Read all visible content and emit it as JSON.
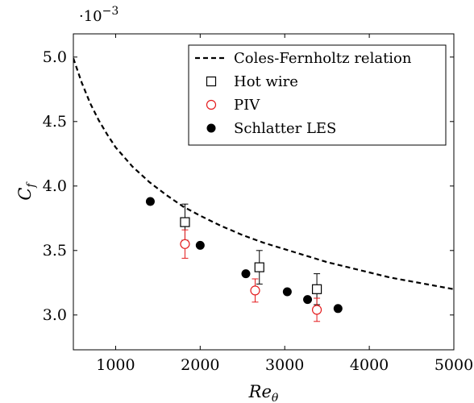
{
  "chart_data": {
    "type": "scatter",
    "title": "",
    "xlabel": "Re",
    "xlabel_sub": "θ",
    "ylabel": "C",
    "ylabel_sub": "f",
    "y_scale_note": {
      "base": "·10",
      "exponent": "−3"
    },
    "xlim": [
      500,
      5000
    ],
    "ylim": [
      2.73,
      5.18
    ],
    "x_ticks": [
      1000,
      2000,
      3000,
      4000,
      5000
    ],
    "x_tick_labels": [
      "1000",
      "2000",
      "3000",
      "4000",
      "5000"
    ],
    "y_ticks": [
      3.0,
      3.5,
      4.0,
      4.5,
      5.0
    ],
    "y_tick_labels": [
      "3.0",
      "3.5",
      "4.0",
      "4.5",
      "5.0"
    ],
    "grid": false,
    "legend_position": "top-right",
    "series": [
      {
        "name": "Coles-Fernholtz relation",
        "kind": "line",
        "style": "dashed",
        "color": "#000000",
        "x": [
          500,
          600,
          700,
          800,
          900,
          1000,
          1200,
          1400,
          1600,
          1800,
          2000,
          2250,
          2500,
          2750,
          3000,
          3250,
          3500,
          3750,
          4000,
          4250,
          4500,
          4750,
          5000
        ],
        "y": [
          4.99,
          4.8,
          4.64,
          4.51,
          4.4,
          4.3,
          4.15,
          4.03,
          3.93,
          3.84,
          3.77,
          3.69,
          3.62,
          3.56,
          3.51,
          3.46,
          3.41,
          3.37,
          3.33,
          3.29,
          3.26,
          3.23,
          3.2
        ]
      },
      {
        "name": "Hot wire",
        "kind": "points",
        "marker": "square-open",
        "color": "#000000",
        "x": [
          1820,
          2700,
          3380
        ],
        "y": [
          3.72,
          3.37,
          3.2
        ],
        "yerr": [
          0.14,
          0.13,
          0.12
        ]
      },
      {
        "name": "PIV",
        "kind": "points",
        "marker": "circle-open",
        "color": "#e41a1c",
        "x": [
          1820,
          2650,
          3380
        ],
        "y": [
          3.55,
          3.19,
          3.04
        ],
        "yerr": [
          0.11,
          0.09,
          0.09
        ]
      },
      {
        "name": "Schlatter LES",
        "kind": "points",
        "marker": "circle-filled",
        "color": "#000000",
        "x": [
          1410,
          2000,
          2540,
          3030,
          3270,
          3630
        ],
        "y": [
          3.88,
          3.54,
          3.32,
          3.18,
          3.12,
          3.05
        ]
      }
    ]
  }
}
